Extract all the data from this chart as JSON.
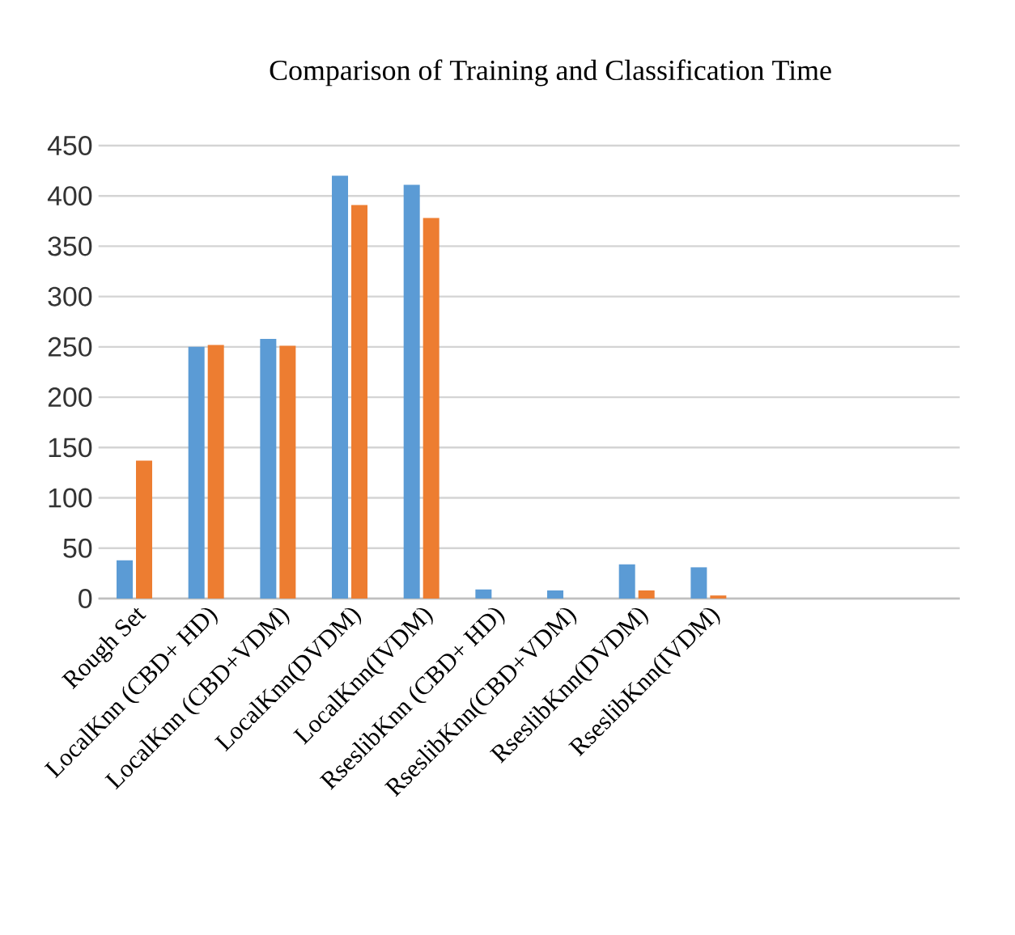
{
  "chart_data": {
    "type": "bar",
    "title": "Comparison of Training and Classification Time",
    "categories": [
      "Rough Set",
      "LocalKnn (CBD+ HD)",
      "LocalKnn (CBD+VDM)",
      "LocalKnn(DVDM)",
      "LocalKnn(IVDM)",
      "RseslibKnn (CBD+ HD)",
      "RseslibKnn(CBD+VDM)",
      "RseslibKnn(DVDM)",
      "RseslibKnn(IVDM)",
      null,
      null,
      null
    ],
    "series": [
      {
        "color": "#5b9bd5",
        "values": [
          38,
          250,
          258,
          420,
          411,
          9,
          8,
          34,
          31,
          null,
          null,
          null
        ]
      },
      {
        "color": "#ed7d31",
        "values": [
          137,
          252,
          251,
          391,
          378,
          0,
          0,
          8,
          3,
          null,
          null,
          null
        ]
      }
    ],
    "ylim": [
      0,
      450
    ],
    "yticks": [
      0,
      50,
      100,
      150,
      200,
      250,
      300,
      350,
      400,
      450
    ],
    "grid": "y"
  }
}
